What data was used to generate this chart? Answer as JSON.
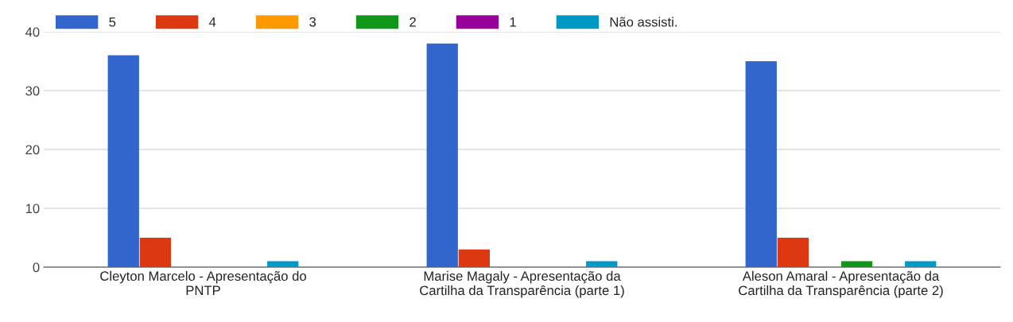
{
  "chart_data": {
    "type": "bar",
    "categories": [
      "Cleyton Marcelo - Apresentação do\nPNTP",
      "Marise Magaly - Apresentação da\nCartilha da Transparência (parte 1)",
      "Aleson Amaral - Apresentação da\nCartilha da Transparência (parte 2)"
    ],
    "series": [
      {
        "name": "5",
        "color": "#3366cc",
        "values": [
          36,
          38,
          35
        ]
      },
      {
        "name": "4",
        "color": "#dc3912",
        "values": [
          5,
          3,
          5
        ]
      },
      {
        "name": "3",
        "color": "#ff9900",
        "values": [
          0,
          0,
          0
        ]
      },
      {
        "name": "2",
        "color": "#109618",
        "values": [
          0,
          0,
          1
        ]
      },
      {
        "name": "1",
        "color": "#990099",
        "values": [
          0,
          0,
          0
        ]
      },
      {
        "name": "Não assisti.",
        "color": "#0099c6",
        "values": [
          1,
          1,
          1
        ]
      }
    ],
    "ylim": [
      0,
      40
    ],
    "yticks": [
      0,
      10,
      20,
      30,
      40
    ],
    "grid": "y",
    "legend": "top left"
  }
}
